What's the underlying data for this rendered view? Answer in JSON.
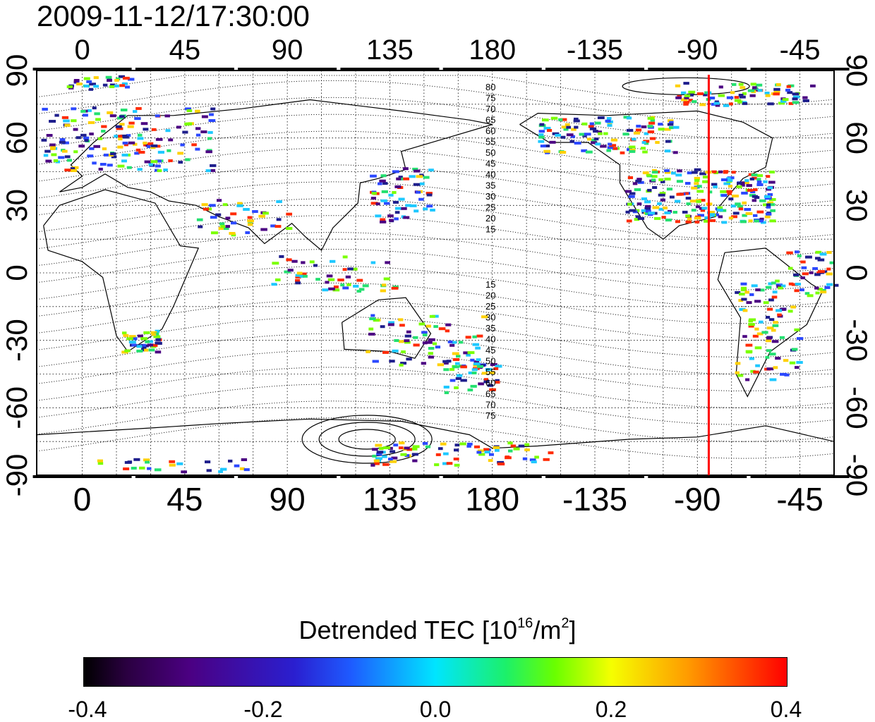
{
  "timestamp": "2009-11-12/17:30:00",
  "colorbar": {
    "title_main": "Detrended TEC  [10",
    "title_exp": "16",
    "title_unit": "/m",
    "title_exp2": "2",
    "title_end": "]",
    "tick_labels": [
      "-0.4",
      "-0.2",
      "0.0",
      "0.2",
      "0.4"
    ],
    "range": [
      -0.4,
      0.4
    ]
  },
  "map": {
    "x_ticks_top": [
      "0",
      "45",
      "90",
      "135",
      "180",
      "-135",
      "-90",
      "-45"
    ],
    "x_ticks_bottom": [
      "0",
      "45",
      "90",
      "135",
      "180",
      "-135",
      "-90",
      "-45"
    ],
    "y_ticks_left": [
      "90",
      "60",
      "30",
      "0",
      "-30",
      "-60",
      "-90"
    ],
    "y_ticks_right": [
      "90",
      "60",
      "30",
      "0",
      "-30",
      "-60",
      "-90"
    ],
    "contour_labels_north": [
      "80",
      "75",
      "70",
      "65",
      "60",
      "55",
      "50",
      "45",
      "40",
      "35",
      "30",
      "25",
      "20",
      "15"
    ],
    "contour_labels_south": [
      "15",
      "20",
      "25",
      "30",
      "35",
      "40",
      "45",
      "50",
      "55",
      "60",
      "65",
      "70",
      "75"
    ],
    "terminator_longitude": -85,
    "terminator_color": "#ff0000",
    "lon_range": [
      -20,
      330
    ],
    "lat_range": [
      -90,
      90
    ]
  }
}
